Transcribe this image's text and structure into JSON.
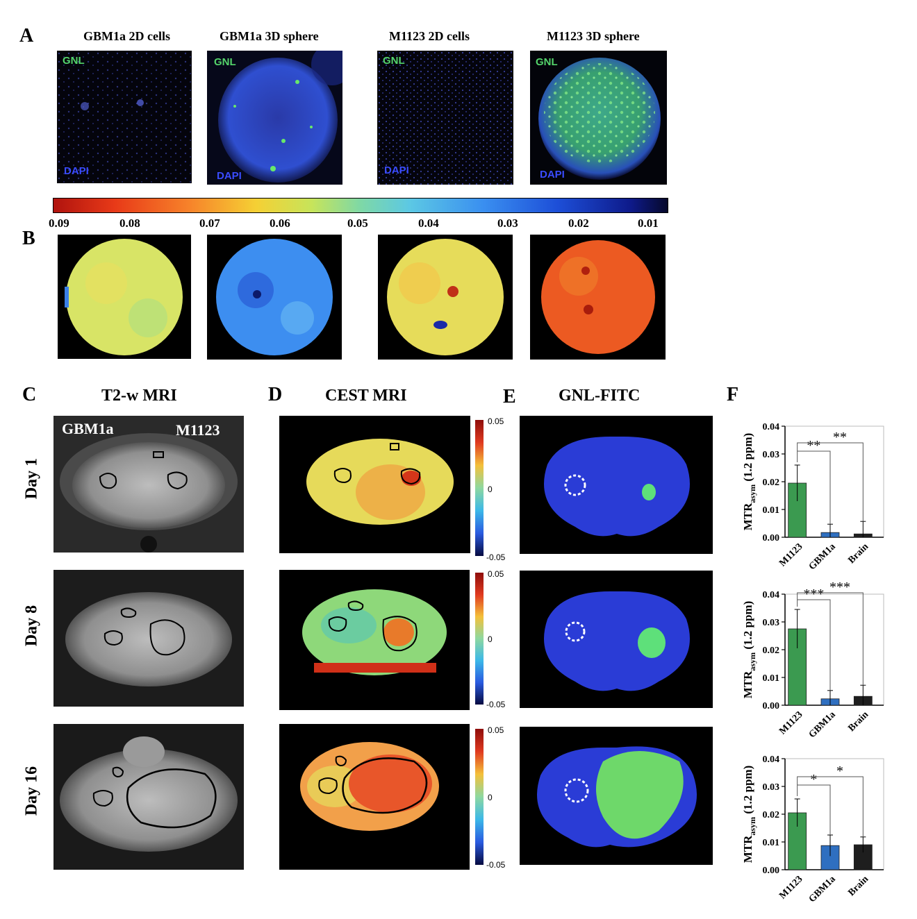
{
  "panel_a": {
    "label": "A",
    "columns": [
      {
        "title": "GBM1a 2D cells",
        "top_label": "GNL",
        "bottom_label": "DAPI"
      },
      {
        "title": "GBM1a 3D sphere",
        "top_label": "GNL",
        "bottom_label": "DAPI"
      },
      {
        "title": "M1123 2D cells",
        "top_label": "GNL",
        "bottom_label": "DAPI"
      },
      {
        "title": "M1123 3D sphere",
        "top_label": "GNL",
        "bottom_label": "DAPI"
      }
    ]
  },
  "colorbar_b": {
    "ticks": [
      "0.09",
      "0.08",
      "0.07",
      "0.06",
      "0.05",
      "0.04",
      "0.03",
      "0.02",
      "0.01"
    ]
  },
  "panel_b": {
    "label": "B"
  },
  "panel_c": {
    "label": "C",
    "title": "T2-w MRI",
    "left_label": "GBM1a",
    "right_label": "M1123"
  },
  "panel_d": {
    "label": "D",
    "title": "CEST MRI",
    "cb_top": "0.05",
    "cb_mid": "0",
    "cb_bottom": "-0.05"
  },
  "panel_e": {
    "label": "E",
    "title": "GNL-FITC"
  },
  "panel_f": {
    "label": "F"
  },
  "rows": [
    {
      "day": "Day 1"
    },
    {
      "day": "Day 8"
    },
    {
      "day": "Day 16"
    }
  ],
  "chart_data": [
    {
      "type": "bar",
      "categories": [
        "M1123",
        "GBM1a",
        "Brain"
      ],
      "values": [
        0.0195,
        0.0017,
        0.0012
      ],
      "errors": [
        0.0065,
        0.003,
        0.0045
      ],
      "colors": [
        "#3b9a50",
        "#2f6fc0",
        "#1e1e1e"
      ],
      "ylabel_main": "MTR",
      "ylabel_sub": "asym",
      "ylabel_tail": " (1.2 ppm)",
      "ylim": [
        0,
        0.04
      ],
      "yticks": [
        "0.00",
        "0.01",
        "0.02",
        "0.03",
        "0.04"
      ],
      "significance": [
        "**",
        "**"
      ]
    },
    {
      "type": "bar",
      "categories": [
        "M1123",
        "GBM1a",
        "Brain"
      ],
      "values": [
        0.0275,
        0.0023,
        0.0032
      ],
      "errors": [
        0.007,
        0.003,
        0.004
      ],
      "colors": [
        "#3b9a50",
        "#2f6fc0",
        "#1e1e1e"
      ],
      "ylabel_main": "MTR",
      "ylabel_sub": "asym",
      "ylabel_tail": " (1.2 ppm)",
      "ylim": [
        0,
        0.04
      ],
      "yticks": [
        "0.00",
        "0.01",
        "0.02",
        "0.03",
        "0.04"
      ],
      "significance": [
        "***",
        "***"
      ]
    },
    {
      "type": "bar",
      "categories": [
        "M1123",
        "GBM1a",
        "Brain"
      ],
      "values": [
        0.0205,
        0.0087,
        0.009
      ],
      "errors": [
        0.005,
        0.0038,
        0.0028
      ],
      "colors": [
        "#3b9a50",
        "#2f6fc0",
        "#1e1e1e"
      ],
      "ylabel_main": "MTR",
      "ylabel_sub": "asym",
      "ylabel_tail": " (1.2 ppm)",
      "ylim": [
        0,
        0.04
      ],
      "yticks": [
        "0.00",
        "0.01",
        "0.02",
        "0.03",
        "0.04"
      ],
      "significance": [
        "*",
        "*"
      ]
    }
  ]
}
